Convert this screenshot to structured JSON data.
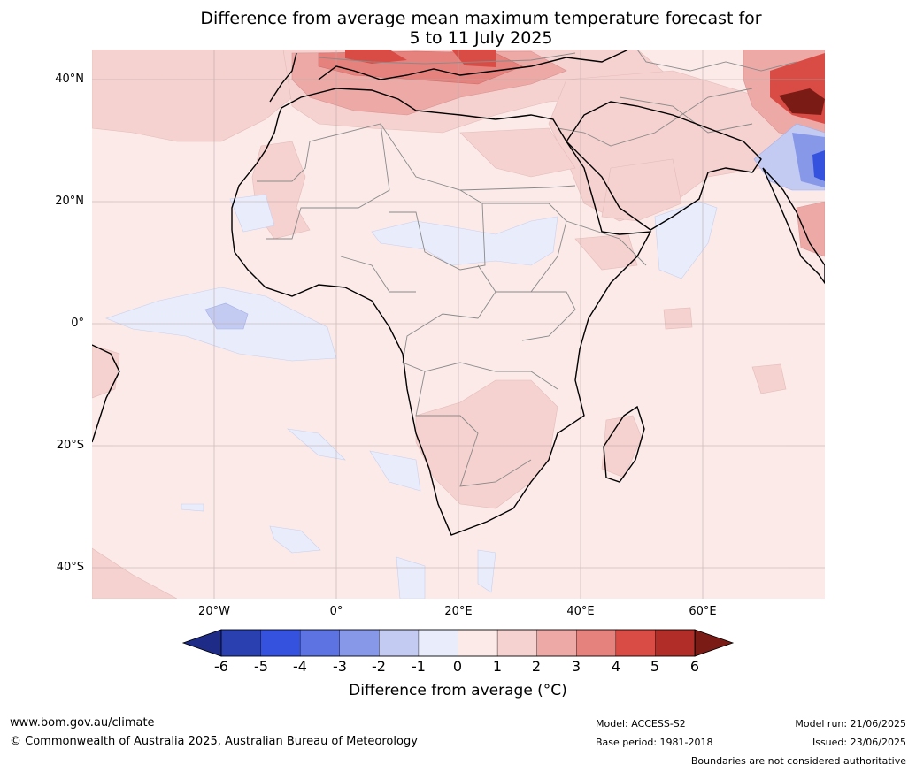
{
  "title_line1": "Difference from average mean maximum temperature forecast for",
  "title_line2": "5 to 11 July 2025",
  "lat_labels": [
    "40°N",
    "20°N",
    "0°",
    "20°S",
    "40°S"
  ],
  "lon_labels": [
    "20°W",
    "0°",
    "20°E",
    "40°E",
    "60°E"
  ],
  "colorbar": {
    "ticks": [
      "-6",
      "-5",
      "-4",
      "-3",
      "-2",
      "-1",
      "0",
      "1",
      "2",
      "3",
      "4",
      "5",
      "6"
    ],
    "colors": [
      "#1e2c88",
      "#2a3fb0",
      "#3552de",
      "#5d73e2",
      "#8898e8",
      "#c3cbf3",
      "#e8ecfb",
      "#fbeae8",
      "#f5d1cf",
      "#eda9a6",
      "#e6827d",
      "#d94c45",
      "#b02e27",
      "#7a1c15"
    ],
    "label": "Difference from average (°C)"
  },
  "footer": {
    "website": "www.bom.gov.au/climate",
    "copyright": "© Commonwealth of Australia 2025, Australian Bureau of Meteorology",
    "model": "Model: ACCESS-S2",
    "base_period": "Base period: 1981-2018",
    "model_run": "Model run: 21/06/2025",
    "issued": "Issued: 23/06/2025",
    "disclaimer": "Boundaries are not considered authoritative"
  }
}
